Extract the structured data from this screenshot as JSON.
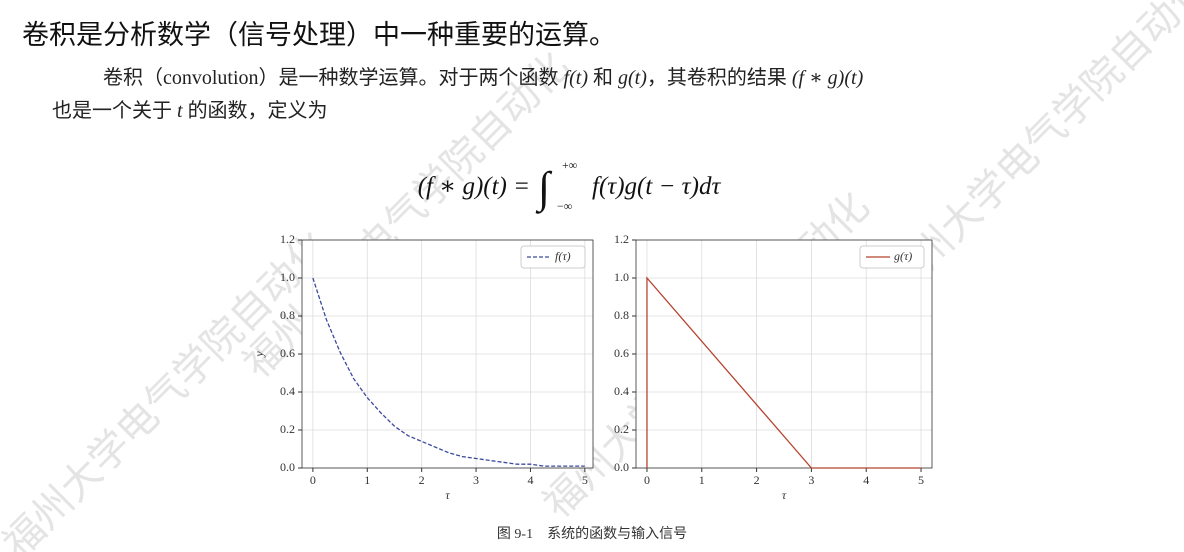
{
  "heading": "卷积是分析数学（信号处理）中一种重要的运算。",
  "paragraph": {
    "line1": [
      "卷积（convolution）是一种数学运算。对于两个函数 ",
      "f(t)",
      " 和 ",
      "g(t)",
      "，其卷积的结果 ",
      "(f ∗ g)(t)"
    ],
    "line2": [
      "也是一个关于 ",
      "t",
      " 的函数，定义为"
    ]
  },
  "formula": {
    "lhs": "(f ∗ g)(t) =",
    "integral": "∫",
    "upper": "+∞",
    "lower": "−∞",
    "integrand": "f(τ)g(t − τ)dτ"
  },
  "caption": "图 9-1　系统的函数与输入信号",
  "watermark": "福州大学电气学院自动化",
  "chart_data": [
    {
      "type": "line",
      "xlabel": "τ",
      "ylabel": "y",
      "x": [
        0,
        0.25,
        0.5,
        0.75,
        1,
        1.25,
        1.5,
        1.75,
        2,
        2.25,
        2.5,
        2.75,
        3,
        3.25,
        3.5,
        3.75,
        4,
        4.25,
        4.5,
        4.75,
        5
      ],
      "series": [
        {
          "name": "f(τ)",
          "color": "#3b4a9c",
          "linestyle": "dashed",
          "values": [
            1,
            0.78,
            0.61,
            0.47,
            0.37,
            0.29,
            0.22,
            0.17,
            0.14,
            0.11,
            0.08,
            0.06,
            0.05,
            0.04,
            0.03,
            0.02,
            0.02,
            0.01,
            0.01,
            0.01,
            0.01
          ]
        }
      ],
      "xlim": [
        -0.2,
        5.15
      ],
      "ylim": [
        0,
        1.2
      ],
      "xticks": [
        0,
        1,
        2,
        3,
        4,
        5
      ],
      "yticks": [
        {
          "value": 0,
          "label": "0.0"
        },
        0.2,
        0.4,
        0.6,
        0.8,
        {
          "value": 1,
          "label": "1.0"
        },
        1.2
      ],
      "grid": true,
      "legend": "upper right"
    },
    {
      "type": "line",
      "xlabel": "τ",
      "x": [
        0,
        0,
        3,
        5
      ],
      "series": [
        {
          "name": "g(τ)",
          "color": "#b5442f",
          "linestyle": "solid",
          "values": [
            0,
            1,
            0,
            0
          ]
        }
      ],
      "xlim": [
        -0.2,
        5.2
      ],
      "ylim": [
        0,
        1.2
      ],
      "xticks": [
        0,
        1,
        2,
        3,
        4,
        5
      ],
      "yticks": [
        {
          "value": 0,
          "label": "0.0"
        },
        0.2,
        0.4,
        0.6,
        0.8,
        {
          "value": 1,
          "label": "1.0"
        },
        1.2
      ],
      "grid": true,
      "legend": "upper right"
    }
  ]
}
